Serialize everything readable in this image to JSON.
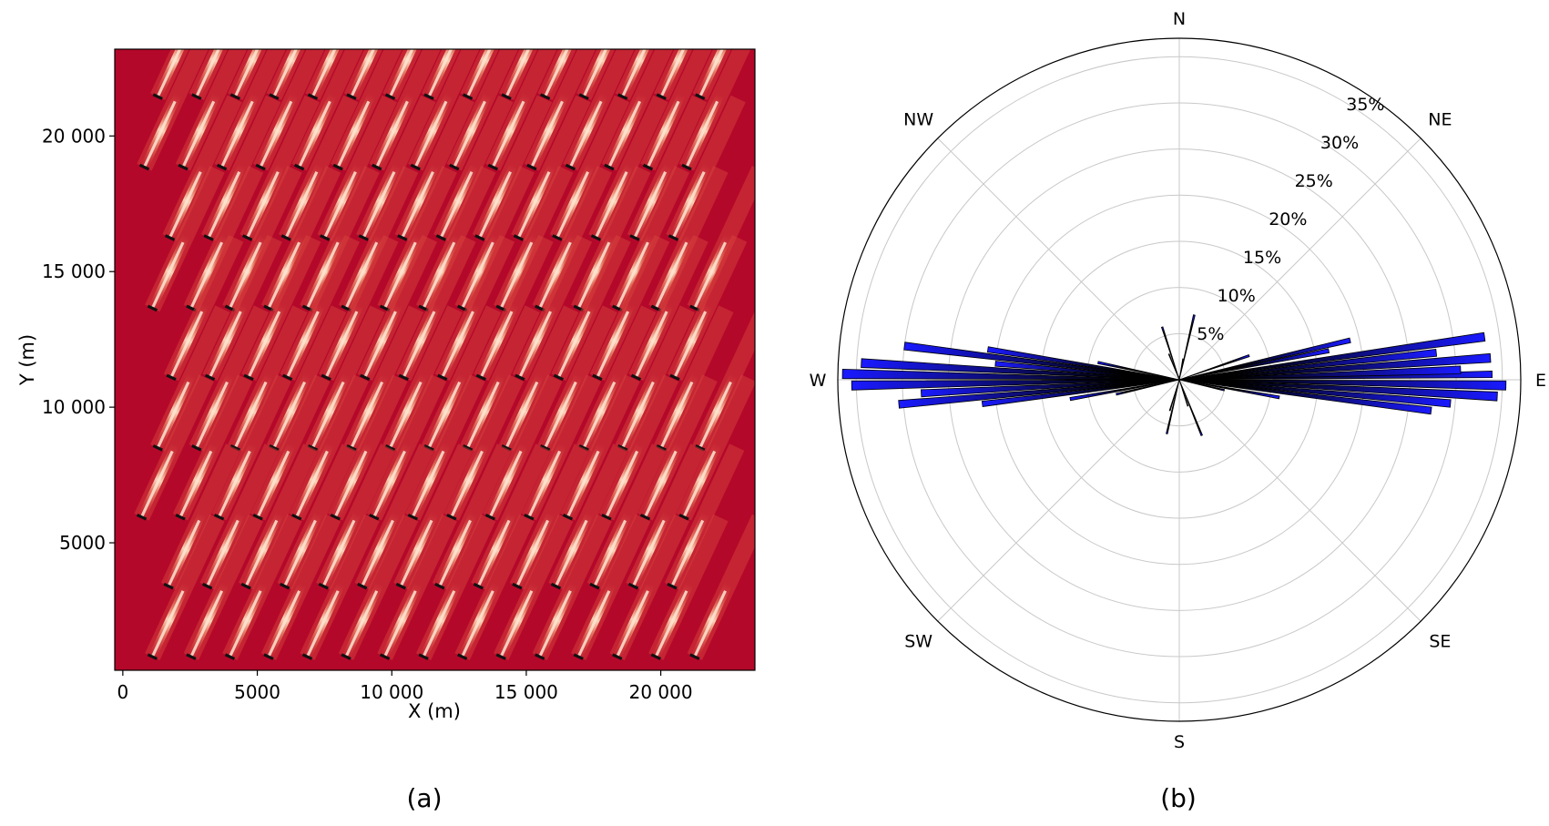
{
  "colors": {
    "field_background": "#b4082a",
    "wake_core": "#f2a07a",
    "wake_mid": "#d9473f",
    "turbine": "#111111",
    "rose_bar": "#1a1aff",
    "rose_bar_dark": "#000000",
    "grid": "#c8c8c8"
  },
  "chart_data": [
    {
      "type": "heatmap",
      "panel_label": "(a)",
      "xlabel": "X (m)",
      "ylabel": "Y (m)",
      "xlim": [
        -300,
        23500
      ],
      "ylim": [
        300,
        23200
      ],
      "xticks": [
        {
          "value": 0,
          "label": "0"
        },
        {
          "value": 5000,
          "label": "5000"
        },
        {
          "value": 10000,
          "label": "10 000"
        },
        {
          "value": 15000,
          "label": "15 000"
        },
        {
          "value": 20000,
          "label": "20 000"
        }
      ],
      "yticks": [
        {
          "value": 5000,
          "label": "5000"
        },
        {
          "value": 10000,
          "label": "10 000"
        },
        {
          "value": 15000,
          "label": "15 000"
        },
        {
          "value": 20000,
          "label": "20 000"
        }
      ],
      "turbine_layout": {
        "rows_y": [
          21450,
          18850,
          16250,
          13650,
          11100,
          8500,
          5950,
          3400,
          800
        ],
        "row_x_start": [
          1300,
          800,
          1750,
          1100,
          1800,
          1300,
          700,
          1700,
          1100
        ],
        "row_count": [
          15,
          15,
          14,
          15,
          14,
          15,
          15,
          14,
          15
        ],
        "x_spacing": 1440,
        "wake_direction_deg_from_north": 25,
        "wake_length": 3000
      }
    },
    {
      "type": "bar",
      "subtype": "polar-wind-rose",
      "panel_label": "(b)",
      "compass_labels": [
        "N",
        "NE",
        "E",
        "SE",
        "S",
        "SW",
        "W",
        "NW"
      ],
      "radial_ticks": [
        {
          "value": 5,
          "label": "5%"
        },
        {
          "value": 10,
          "label": "10%"
        },
        {
          "value": 15,
          "label": "15%"
        },
        {
          "value": 20,
          "label": "20%"
        },
        {
          "value": 25,
          "label": "25%"
        },
        {
          "value": 30,
          "label": "30%"
        },
        {
          "value": 35,
          "label": "35%"
        }
      ],
      "rmax": 37,
      "grid": true,
      "sectors": [
        {
          "center_deg": 0,
          "width_deg": 1.5,
          "freq": 0.4
        },
        {
          "center_deg": 10,
          "width_deg": 1.5,
          "freq": 2.3
        },
        {
          "center_deg": 13,
          "width_deg": 1.5,
          "freq": 7.2
        },
        {
          "center_deg": 71,
          "width_deg": 1.6,
          "freq": 8.0
        },
        {
          "center_deg": 77,
          "width_deg": 1.6,
          "freq": 19.0
        },
        {
          "center_deg": 79,
          "width_deg": 1.6,
          "freq": 16.5
        },
        {
          "center_deg": 82,
          "width_deg": 1.6,
          "freq": 33.4
        },
        {
          "center_deg": 84,
          "width_deg": 1.6,
          "freq": 28.0
        },
        {
          "center_deg": 86,
          "width_deg": 1.6,
          "freq": 33.8
        },
        {
          "center_deg": 88,
          "width_deg": 1.6,
          "freq": 30.5
        },
        {
          "center_deg": 89,
          "width_deg": 1.2,
          "freq": 33.9
        },
        {
          "center_deg": 91,
          "width_deg": 1.6,
          "freq": 35.4
        },
        {
          "center_deg": 93,
          "width_deg": 1.6,
          "freq": 34.5
        },
        {
          "center_deg": 95,
          "width_deg": 1.6,
          "freq": 29.5
        },
        {
          "center_deg": 97,
          "width_deg": 1.6,
          "freq": 27.5
        },
        {
          "center_deg": 100,
          "width_deg": 1.6,
          "freq": 11.0
        },
        {
          "center_deg": 103,
          "width_deg": 1.6,
          "freq": 5.0
        },
        {
          "center_deg": 158,
          "width_deg": 1.5,
          "freq": 6.5
        },
        {
          "center_deg": 162,
          "width_deg": 1.5,
          "freq": 3.0
        },
        {
          "center_deg": 193,
          "width_deg": 1.5,
          "freq": 6.0
        },
        {
          "center_deg": 197,
          "width_deg": 1.5,
          "freq": 3.5
        },
        {
          "center_deg": 257,
          "width_deg": 1.6,
          "freq": 7.0
        },
        {
          "center_deg": 260,
          "width_deg": 1.6,
          "freq": 12.0
        },
        {
          "center_deg": 263,
          "width_deg": 1.6,
          "freq": 21.5
        },
        {
          "center_deg": 265,
          "width_deg": 1.6,
          "freq": 30.5
        },
        {
          "center_deg": 267,
          "width_deg": 1.6,
          "freq": 28.0
        },
        {
          "center_deg": 269,
          "width_deg": 1.6,
          "freq": 35.5
        },
        {
          "center_deg": 271,
          "width_deg": 1.6,
          "freq": 36.5
        },
        {
          "center_deg": 273,
          "width_deg": 1.6,
          "freq": 34.5
        },
        {
          "center_deg": 275,
          "width_deg": 1.6,
          "freq": 20.0
        },
        {
          "center_deg": 277,
          "width_deg": 1.6,
          "freq": 30.0
        },
        {
          "center_deg": 279,
          "width_deg": 1.6,
          "freq": 21.0
        },
        {
          "center_deg": 282,
          "width_deg": 1.6,
          "freq": 9.0
        },
        {
          "center_deg": 338,
          "width_deg": 1.5,
          "freq": 3.0
        },
        {
          "center_deg": 342,
          "width_deg": 1.5,
          "freq": 6.0
        }
      ]
    }
  ]
}
